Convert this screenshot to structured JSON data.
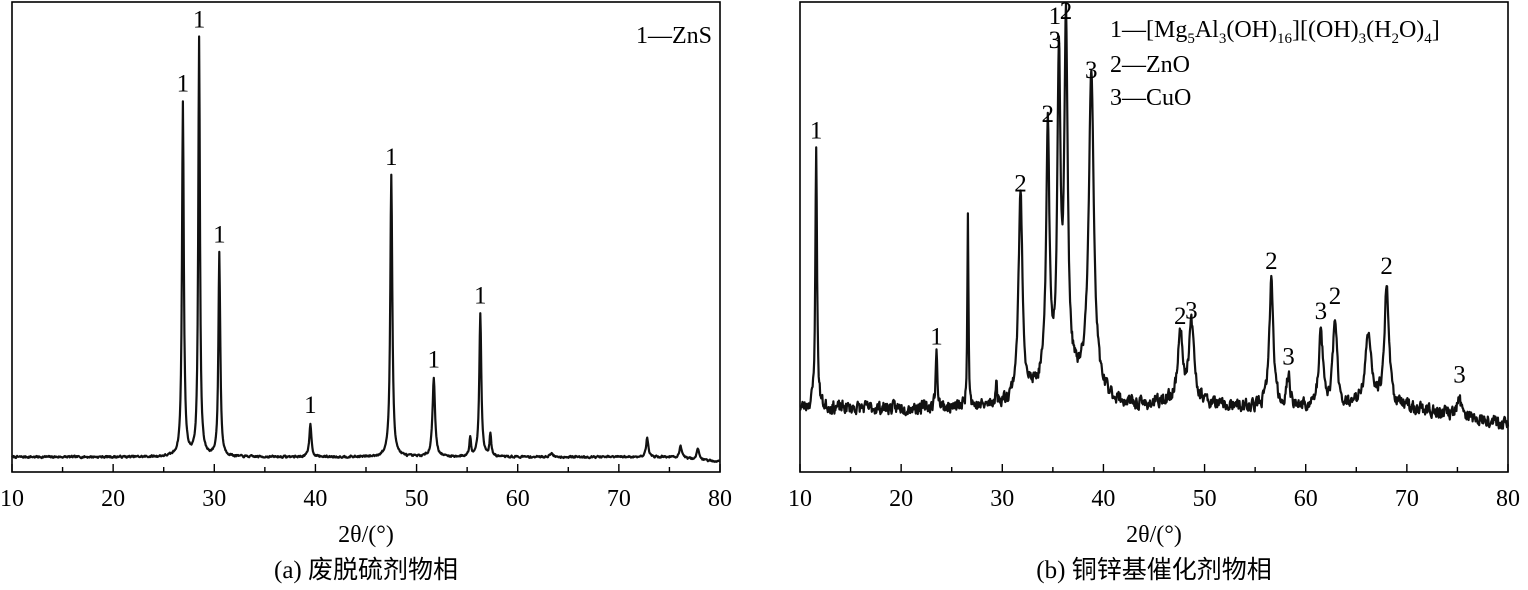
{
  "chart_data": [
    {
      "type": "line",
      "panel": "a",
      "caption": "(a) 废脱硫剂物相",
      "xlabel": "2θ/(°)",
      "ylabel": "",
      "xlim": [
        10,
        80
      ],
      "xticks": [
        10,
        20,
        30,
        40,
        50,
        60,
        70,
        80
      ],
      "legend": [
        {
          "id": "1",
          "label": "1—ZnS"
        }
      ],
      "legend_position": "top-right",
      "baseline": 0.04,
      "noise": 0.004,
      "peaks": [
        {
          "x": 26.9,
          "h": 0.94,
          "w": 0.16,
          "label": "1"
        },
        {
          "x": 28.5,
          "h": 1.11,
          "w": 0.15,
          "label": "1"
        },
        {
          "x": 30.5,
          "h": 0.54,
          "w": 0.16,
          "label": "1"
        },
        {
          "x": 39.5,
          "h": 0.09,
          "w": 0.18,
          "label": "1"
        },
        {
          "x": 47.5,
          "h": 0.75,
          "w": 0.18,
          "label": "1"
        },
        {
          "x": 51.7,
          "h": 0.21,
          "w": 0.22,
          "label": "1"
        },
        {
          "x": 55.3,
          "h": 0.05,
          "w": 0.15
        },
        {
          "x": 56.3,
          "h": 0.38,
          "w": 0.18,
          "label": "1"
        },
        {
          "x": 57.3,
          "h": 0.06,
          "w": 0.15
        },
        {
          "x": 63.3,
          "h": 0.01,
          "w": 0.25
        },
        {
          "x": 72.8,
          "h": 0.05,
          "w": 0.2
        },
        {
          "x": 76.1,
          "h": 0.03,
          "w": 0.2
        },
        {
          "x": 77.8,
          "h": 0.03,
          "w": 0.2
        }
      ]
    },
    {
      "type": "line",
      "panel": "b",
      "caption": "(b) 铜锌基催化剂物相",
      "xlabel": "2θ/(°)",
      "ylabel": "",
      "xlim": [
        10,
        80
      ],
      "xticks": [
        10,
        20,
        30,
        40,
        50,
        60,
        70,
        80
      ],
      "legend": [
        {
          "id": "1",
          "label": "1—[Mg5Al3(OH)16][(OH)3(H2O)4]"
        },
        {
          "id": "2",
          "label": "2—ZnO"
        },
        {
          "id": "3",
          "label": "3—CuO"
        }
      ],
      "legend_position": "top-right",
      "baseline": 0.17,
      "noise": 0.025,
      "peaks": [
        {
          "x": 11.6,
          "h": 0.69,
          "w": 0.15,
          "label": "1"
        },
        {
          "x": 23.5,
          "h": 0.14,
          "w": 0.16,
          "label": "1"
        },
        {
          "x": 26.6,
          "h": 0.53,
          "w": 0.1
        },
        {
          "x": 29.4,
          "h": 0.05,
          "w": 0.15
        },
        {
          "x": 31.8,
          "h": 0.54,
          "w": 0.35,
          "label": "2"
        },
        {
          "x": 34.5,
          "h": 0.69,
          "w": 0.28,
          "label": "2"
        },
        {
          "x": 35.6,
          "h": 0.83,
          "w": 0.28,
          "label": "1\n3"
        },
        {
          "x": 36.3,
          "h": 0.93,
          "w": 0.3,
          "label": "2"
        },
        {
          "x": 38.8,
          "h": 0.84,
          "w": 0.45,
          "label": "3"
        },
        {
          "x": 47.6,
          "h": 0.18,
          "w": 0.4,
          "label": "2"
        },
        {
          "x": 48.7,
          "h": 0.2,
          "w": 0.45,
          "label": "3"
        },
        {
          "x": 56.6,
          "h": 0.34,
          "w": 0.35,
          "label": "2"
        },
        {
          "x": 58.3,
          "h": 0.08,
          "w": 0.3,
          "label": "3"
        },
        {
          "x": 61.5,
          "h": 0.2,
          "w": 0.35,
          "label": "3"
        },
        {
          "x": 62.9,
          "h": 0.24,
          "w": 0.35,
          "label": "2"
        },
        {
          "x": 66.2,
          "h": 0.18,
          "w": 0.6
        },
        {
          "x": 68.0,
          "h": 0.32,
          "w": 0.4,
          "label": "2"
        },
        {
          "x": 75.2,
          "h": 0.04,
          "w": 0.4,
          "label": "3"
        }
      ]
    }
  ]
}
